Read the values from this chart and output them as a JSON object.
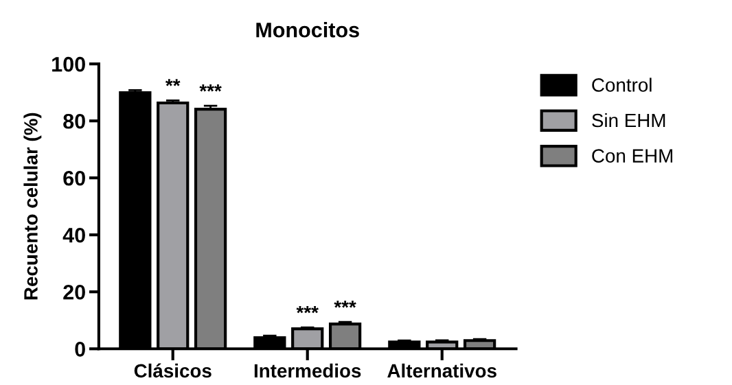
{
  "chart_data": {
    "type": "bar",
    "title": "Monocitos",
    "ylabel": "Recuento celular (%)",
    "categories": [
      "Clásicos",
      "Intermedios",
      "Alternativos"
    ],
    "series": [
      {
        "name": "Control",
        "color": "#000000",
        "values": [
          89.9,
          3.9,
          2.4
        ],
        "errors": [
          0.9,
          0.7,
          0.5
        ]
      },
      {
        "name": "Sin EHM",
        "color": "#a0a0a4",
        "values": [
          86.3,
          7.0,
          2.4
        ],
        "errors": [
          0.9,
          0.5,
          0.6
        ],
        "value_labels": [
          "**",
          "***",
          null
        ]
      },
      {
        "name": "Con EHM",
        "color": "#7f7f7f",
        "values": [
          84.1,
          8.7,
          2.9
        ],
        "errors": [
          1.2,
          0.7,
          0.5
        ],
        "value_labels": [
          "***",
          "***",
          null
        ]
      }
    ],
    "ylim": [
      0,
      100
    ],
    "yticks": [
      0,
      20,
      40,
      60,
      80,
      100
    ],
    "grid": false,
    "legend": "right"
  }
}
